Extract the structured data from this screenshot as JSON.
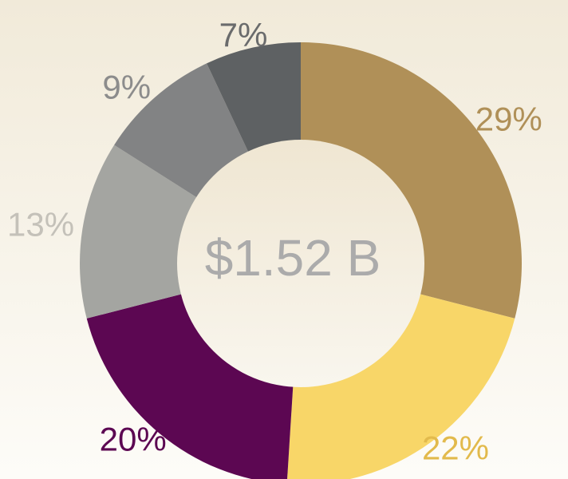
{
  "chart_data": {
    "type": "donut",
    "center_label": "$1.52 B",
    "values": [
      29,
      22,
      20,
      13,
      9,
      7
    ],
    "value_labels": [
      "29%",
      "22%",
      "20%",
      "13%",
      "9%",
      "7%"
    ],
    "colors": [
      "#b09058",
      "#f8d668",
      "#5c0752",
      "#a4a5a1",
      "#828384",
      "#5e6163"
    ],
    "label_colors": [
      "#b09058",
      "#e2ba4c",
      "#5c0752",
      "#c4c1b9",
      "#8c8c8c",
      "#6a6b6c"
    ]
  }
}
